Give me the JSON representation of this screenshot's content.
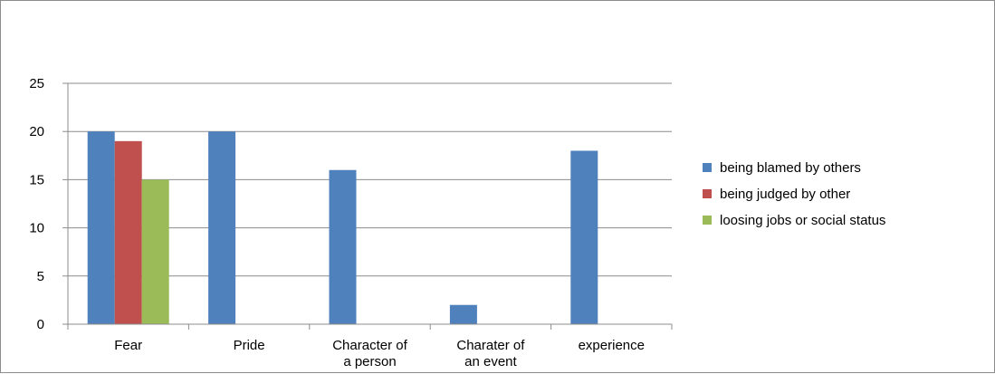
{
  "chart_data": {
    "type": "bar",
    "categories": [
      "Fear",
      "Pride",
      "Character of a person",
      "Charater of an event",
      "experience"
    ],
    "category_lines": [
      [
        "Fear"
      ],
      [
        "Pride"
      ],
      [
        "Character of",
        "a person"
      ],
      [
        "Charater of",
        "an event"
      ],
      [
        "experience"
      ]
    ],
    "series": [
      {
        "name": "being blamed by others",
        "color": "#4f81bd",
        "values": [
          20,
          20,
          16,
          2,
          18
        ]
      },
      {
        "name": "being judged by other",
        "color": "#c0504d",
        "values": [
          19,
          0,
          0,
          0,
          0
        ]
      },
      {
        "name": "loosing jobs or social status",
        "color": "#9bbb59",
        "values": [
          15,
          0,
          0,
          0,
          0
        ]
      }
    ],
    "yticks": [
      "0",
      "5",
      "10",
      "15",
      "20",
      "25"
    ],
    "ylim": [
      0,
      25
    ],
    "grid": true,
    "legend_position": "right"
  }
}
